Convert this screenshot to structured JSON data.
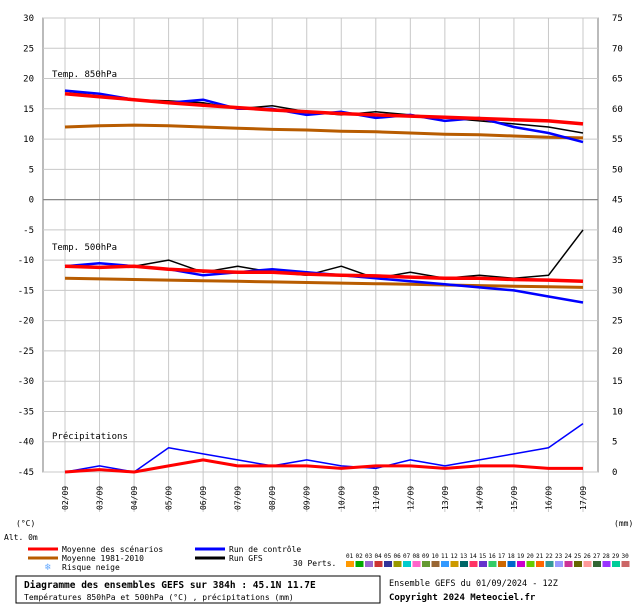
{
  "chart_data": {
    "type": "line",
    "title": "Diagramme des ensembles GEFS sur 384h : 45.1N 11.7E",
    "subtitle": "Températures 850hPa et 500hPa (°C) , précipitations (mm)",
    "left_unit": "(°C)",
    "right_unit": "(mm)",
    "altitude": "Alt. 0m",
    "left_ticks": [
      "30",
      "25",
      "20",
      "15",
      "10",
      "5",
      "0",
      "-5",
      "-10",
      "-15",
      "-20",
      "-25",
      "-30",
      "-35",
      "-40",
      "-45"
    ],
    "right_ticks": [
      "75",
      "70",
      "65",
      "60",
      "55",
      "50",
      "45",
      "40",
      "35",
      "30",
      "25",
      "20",
      "15",
      "10",
      "5",
      "0"
    ],
    "x_labels": [
      "02/09",
      "03/09",
      "04/09",
      "05/09",
      "06/09",
      "07/09",
      "08/09",
      "09/09",
      "10/09",
      "11/09",
      "12/09",
      "13/09",
      "14/09",
      "15/09",
      "16/09",
      "17/09"
    ],
    "panels": [
      {
        "label": "Temp. 850hPa",
        "units": "°C"
      },
      {
        "label": "Temp. 500hPa",
        "units": "°C"
      },
      {
        "label": "Précipitations",
        "units": "mm"
      }
    ],
    "series": [
      {
        "name": "Moyenne des scénarios",
        "color": "#ff0000",
        "t850": [
          17.5,
          17,
          16.5,
          16,
          15.6,
          15.2,
          14.8,
          14.5,
          14.2,
          14,
          13.8,
          13.6,
          13.4,
          13.2,
          13,
          12.5
        ],
        "t500": [
          -11,
          -11.2,
          -11,
          -11.5,
          -11.8,
          -12,
          -12,
          -12.3,
          -12.5,
          -12.6,
          -12.8,
          -13,
          -13,
          -13.2,
          -13.3,
          -13.5
        ],
        "precip": [
          0,
          0.2,
          0,
          0.5,
          1,
          0.5,
          0.5,
          0.5,
          0.3,
          0.5,
          0.5,
          0.3,
          0.5,
          0.5,
          0.3,
          0.3
        ]
      },
      {
        "name": "Moyenne 1981-2010",
        "color": "#b85c00",
        "t850": [
          12,
          12.2,
          12.3,
          12.2,
          12,
          11.8,
          11.6,
          11.5,
          11.3,
          11.2,
          11,
          10.8,
          10.7,
          10.5,
          10.3,
          10.2
        ],
        "t500": [
          -13,
          -13.1,
          -13.2,
          -13.3,
          -13.4,
          -13.5,
          -13.6,
          -13.7,
          -13.8,
          -13.9,
          -14,
          -14.1,
          -14.2,
          -14.3,
          -14.4,
          -14.5
        ]
      },
      {
        "name": "Run de contrôle",
        "color": "#0000ff",
        "t850": [
          18,
          17.5,
          16.5,
          16,
          16.5,
          15,
          15,
          14,
          14.5,
          13.5,
          14,
          13,
          13.5,
          12,
          11,
          9.5
        ],
        "t500": [
          -11,
          -10.5,
          -11,
          -11.5,
          -12.5,
          -12,
          -11.5,
          -12,
          -12.5,
          -13,
          -13.5,
          -14,
          -14.5,
          -15,
          -16,
          -17
        ],
        "precip": [
          0,
          0.5,
          0,
          2,
          1.5,
          1,
          0.5,
          1,
          0.5,
          0.3,
          1,
          0.5,
          1,
          1.5,
          2,
          4
        ]
      },
      {
        "name": "Run GFS",
        "color": "#000000",
        "t850": [
          18,
          17,
          16.5,
          16.3,
          16,
          15,
          15.5,
          14.5,
          14,
          14.5,
          14,
          13.5,
          13,
          12.5,
          12,
          11
        ],
        "t500": [
          -11,
          -10.5,
          -11,
          -10,
          -12,
          -11,
          -12,
          -12.5,
          -11,
          -13,
          -12,
          -13,
          -12.5,
          -13,
          -12.5,
          -5
        ]
      },
      {
        "name": "Risque neige",
        "color": "#66aaff"
      }
    ],
    "perts_label": "30 Perts.",
    "perts": [
      "01",
      "02",
      "03",
      "04",
      "05",
      "06",
      "07",
      "08",
      "09",
      "10",
      "11",
      "12",
      "13",
      "14",
      "15",
      "16",
      "17",
      "18",
      "19",
      "20",
      "21",
      "22",
      "23",
      "24",
      "25",
      "26",
      "27",
      "28",
      "29",
      "30"
    ],
    "perts_colors": [
      "#ff9900",
      "#00aa00",
      "#9966cc",
      "#cc3333",
      "#333399",
      "#999900",
      "#00cccc",
      "#ff66cc",
      "#669933",
      "#996633",
      "#3399ff",
      "#cc9900",
      "#006666",
      "#ff3366",
      "#6633cc",
      "#33cc66",
      "#cc6600",
      "#0066cc",
      "#cc00cc",
      "#66cc00",
      "#ff6600",
      "#339999",
      "#9999ff",
      "#cc3399",
      "#666600",
      "#ff9999",
      "#336633",
      "#9933ff",
      "#00cc99",
      "#cc6666"
    ]
  },
  "footer": {
    "title": "Diagramme des ensembles GEFS sur 384h : 45.1N 11.7E",
    "subtitle": "Températures 850hPa et 500hPa (°C) , précipitations (mm)",
    "ensemble": "Ensemble GEFS du 01/09/2024 - 12Z",
    "copyright": "Copyright 2024 Meteociel.fr"
  }
}
